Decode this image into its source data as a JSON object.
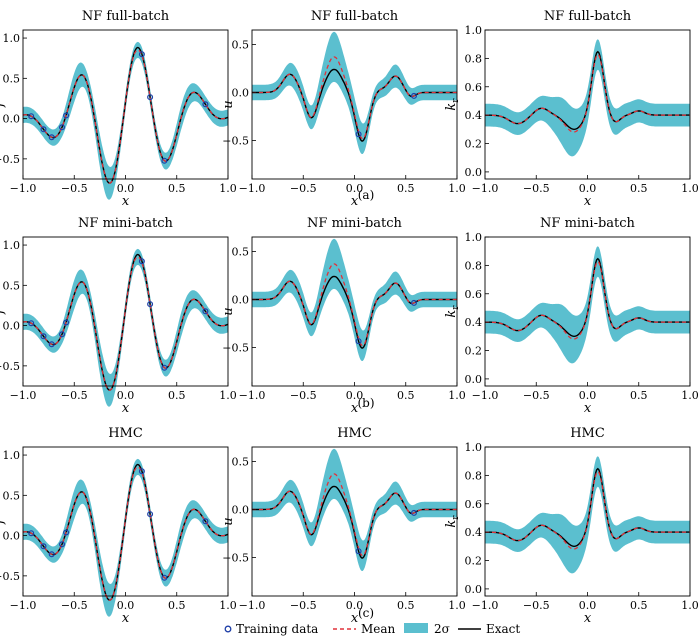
{
  "colors": {
    "band": "#5bbfcf",
    "mean": "#e0323a",
    "exact": "#000000",
    "train": "#1f3fa8"
  },
  "captions": [
    "(a)",
    "(b)",
    "(c)"
  ],
  "legend": [
    {
      "label": "Training data",
      "icon": "circle-marker"
    },
    {
      "label": "Mean",
      "icon": "dashed-line"
    },
    {
      "label": "2σ",
      "icon": "filled-band"
    },
    {
      "label": "Exact",
      "icon": "solid-line"
    }
  ],
  "chart_data": [
    {
      "type": "line",
      "row": 0,
      "col": 0,
      "var": "f",
      "title": "NF full-batch",
      "xlabel": "x",
      "ylabel": "f",
      "xlim": [
        -1,
        1
      ],
      "ylim": [
        -0.75,
        1.1
      ],
      "xticks": [
        "−1.0",
        "−0.5",
        "0.0",
        "0.5",
        "1.0"
      ],
      "yticks": [
        "−0.5",
        "0.0",
        "0.5",
        "1.0"
      ],
      "series": [
        {
          "name": "Exact"
        },
        {
          "name": "Mean"
        },
        {
          "name": "2σ"
        },
        {
          "name": "Training data"
        }
      ]
    },
    {
      "type": "line",
      "row": 0,
      "col": 1,
      "var": "u",
      "title": "NF full-batch",
      "xlabel": "x",
      "ylabel": "u",
      "xlim": [
        -1,
        1
      ],
      "ylim": [
        -0.9,
        0.65
      ],
      "xticks": [
        "−1.0",
        "−0.5",
        "0.0",
        "0.5",
        "1.0"
      ],
      "yticks": [
        "−0.5",
        "0.0",
        "0.5"
      ],
      "series": [
        {
          "name": "Exact"
        },
        {
          "name": "Mean"
        },
        {
          "name": "2σ"
        },
        {
          "name": "Training data"
        }
      ]
    },
    {
      "type": "line",
      "row": 0,
      "col": 2,
      "var": "k",
      "title": "NF full-batch",
      "xlabel": "x",
      "ylabel": "k_r",
      "xlim": [
        -1,
        1
      ],
      "ylim": [
        -0.05,
        1.0
      ],
      "xticks": [
        "−1.0",
        "−0.5",
        "0.0",
        "0.5",
        "1.0"
      ],
      "yticks": [
        "0.0",
        "0.2",
        "0.4",
        "0.6",
        "0.8",
        "1.0"
      ],
      "series": [
        {
          "name": "Exact"
        },
        {
          "name": "Mean"
        },
        {
          "name": "2σ"
        }
      ]
    },
    {
      "type": "line",
      "row": 1,
      "col": 0,
      "var": "f",
      "title": "NF mini-batch",
      "xlabel": "x",
      "ylabel": "f",
      "xlim": [
        -1,
        1
      ],
      "ylim": [
        -0.75,
        1.1
      ],
      "xticks": [
        "−1.0",
        "−0.5",
        "0.0",
        "0.5",
        "1.0"
      ],
      "yticks": [
        "−0.5",
        "0.0",
        "0.5",
        "1.0"
      ],
      "series": [
        {
          "name": "Exact"
        },
        {
          "name": "Mean"
        },
        {
          "name": "2σ"
        },
        {
          "name": "Training data"
        }
      ]
    },
    {
      "type": "line",
      "row": 1,
      "col": 1,
      "var": "u",
      "title": "NF mini-batch",
      "xlabel": "x",
      "ylabel": "u",
      "xlim": [
        -1,
        1
      ],
      "ylim": [
        -0.9,
        0.65
      ],
      "xticks": [
        "−1.0",
        "−0.5",
        "0.0",
        "0.5",
        "1.0"
      ],
      "yticks": [
        "−0.5",
        "0.0",
        "0.5"
      ],
      "series": [
        {
          "name": "Exact"
        },
        {
          "name": "Mean"
        },
        {
          "name": "2σ"
        },
        {
          "name": "Training data"
        }
      ]
    },
    {
      "type": "line",
      "row": 1,
      "col": 2,
      "var": "k",
      "title": "NF mini-batch",
      "xlabel": "x",
      "ylabel": "k_r",
      "xlim": [
        -1,
        1
      ],
      "ylim": [
        -0.05,
        1.0
      ],
      "xticks": [
        "−1.0",
        "−0.5",
        "0.0",
        "0.5",
        "1.0"
      ],
      "yticks": [
        "0.0",
        "0.2",
        "0.4",
        "0.6",
        "0.8",
        "1.0"
      ],
      "series": [
        {
          "name": "Exact"
        },
        {
          "name": "Mean"
        },
        {
          "name": "2σ"
        }
      ]
    },
    {
      "type": "line",
      "row": 2,
      "col": 0,
      "var": "f",
      "title": "HMC",
      "xlabel": "x",
      "ylabel": "f",
      "xlim": [
        -1,
        1
      ],
      "ylim": [
        -0.75,
        1.1
      ],
      "xticks": [
        "−1.0",
        "−0.5",
        "0.0",
        "0.5",
        "1.0"
      ],
      "yticks": [
        "−0.5",
        "0.0",
        "0.5",
        "1.0"
      ],
      "series": [
        {
          "name": "Exact"
        },
        {
          "name": "Mean"
        },
        {
          "name": "2σ"
        },
        {
          "name": "Training data"
        }
      ]
    },
    {
      "type": "line",
      "row": 2,
      "col": 1,
      "var": "u",
      "title": "HMC",
      "xlabel": "x",
      "ylabel": "u",
      "xlim": [
        -1,
        1
      ],
      "ylim": [
        -0.9,
        0.65
      ],
      "xticks": [
        "−1.0",
        "−0.5",
        "0.0",
        "0.5",
        "1.0"
      ],
      "yticks": [
        "−0.5",
        "0.0",
        "0.5"
      ],
      "series": [
        {
          "name": "Exact"
        },
        {
          "name": "Mean"
        },
        {
          "name": "2σ"
        },
        {
          "name": "Training data"
        }
      ]
    },
    {
      "type": "line",
      "row": 2,
      "col": 2,
      "var": "k",
      "title": "HMC",
      "xlabel": "x",
      "ylabel": "k_r",
      "xlim": [
        -1,
        1
      ],
      "ylim": [
        -0.05,
        1.0
      ],
      "xticks": [
        "−1.0",
        "−0.5",
        "0.0",
        "0.5",
        "1.0"
      ],
      "yticks": [
        "0.0",
        "0.2",
        "0.4",
        "0.6",
        "0.8",
        "1.0"
      ],
      "series": [
        {
          "name": "Exact"
        },
        {
          "name": "Mean"
        },
        {
          "name": "2σ"
        }
      ]
    }
  ]
}
